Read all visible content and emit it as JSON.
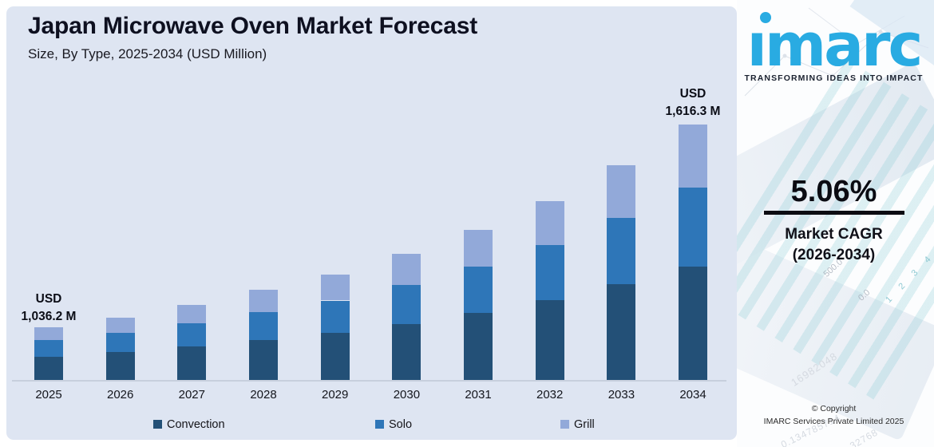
{
  "title": "Japan Microwave Oven Market Forecast",
  "subtitle": "Size, By Type, 2025-2034 (USD Million)",
  "chart_data": {
    "type": "bar",
    "stacked": true,
    "title": "Japan Microwave Oven Market Forecast",
    "xlabel": "",
    "ylabel": "USD Million",
    "grid": false,
    "legend_position": "bottom",
    "categories": [
      "2025",
      "2026",
      "2027",
      "2028",
      "2029",
      "2030",
      "2031",
      "2032",
      "2033",
      "2034"
    ],
    "series": [
      {
        "name": "Convection",
        "color": "#235077",
        "values": [
          461.1,
          484.4,
          508.9,
          534.7,
          561.8,
          590.2,
          620.1,
          651.4,
          684.4,
          719.3
        ]
      },
      {
        "name": "Solo",
        "color": "#2e76b8",
        "values": [
          319.1,
          335.3,
          352.3,
          370.1,
          388.8,
          408.5,
          429.2,
          450.9,
          473.7,
          497.8
        ]
      },
      {
        "name": "Grill",
        "color": "#92a9d9",
        "values": [
          256.0,
          268.9,
          282.5,
          296.8,
          311.8,
          327.6,
          344.1,
          361.6,
          379.9,
          399.2
        ]
      }
    ],
    "totals": [
      1036.2,
      1088.6,
      1143.7,
      1201.6,
      1262.4,
      1326.3,
      1393.4,
      1463.9,
      1538.0,
      1616.3
    ],
    "labeled_totals": {
      "2025": "USD 1,036.2 M",
      "2034": "USD 1,616.3 M"
    },
    "bar_height_pcts": [
      20.6,
      24.4,
      29.4,
      35.3,
      41.3,
      49.4,
      58.8,
      70.0,
      84.1,
      100
    ],
    "callouts": [
      {
        "year": "2025",
        "line1": "USD",
        "line2": "1,036.2 M"
      },
      {
        "year": "2034",
        "line1": "USD",
        "line2": "1,616.3 M"
      }
    ],
    "note": "Only the 2025 and 2034 totals are labeled in the image; intermediate totals and the type split are estimated from the 5.06% CAGR and bar proportions. bar_height_pcts reproduce the stylized (non-zero-based) bar scale of the original graphic."
  },
  "colors": {
    "chart_background": "#dee5f2",
    "accent_logo_blue": "#29abe2",
    "axis_line": "#c7cfdd"
  },
  "side_panel": {
    "logo_text": "imarc",
    "tagline": "TRANSFORMING IDEAS INTO IMPACT",
    "cagr_value": "5.06%",
    "cagr_label": "Market CAGR",
    "cagr_period": "(2026-2034)",
    "copyright_line1": "© Copyright",
    "copyright_line2": "IMARC Services Private Limited 2025",
    "decor": {
      "axis_hi": "500.0",
      "axis_lo": "0.0",
      "ticks": "1 2 3 4",
      "wm1": "16982048",
      "wm2": "0.134785714",
      "wm3": "32768"
    }
  }
}
